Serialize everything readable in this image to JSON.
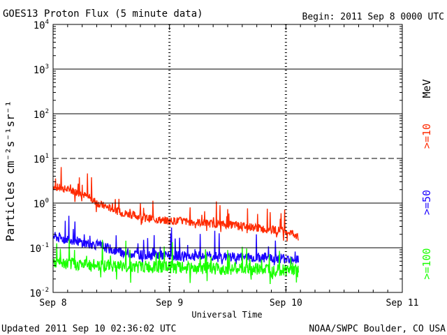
{
  "chart_data": {
    "type": "line",
    "title": "GOES13 Proton Flux (5 minute data)",
    "begin": "Begin: 2011 Sep 8 0000 UTC",
    "xlabel": "Universal Time",
    "ylabel": "Particles cm⁻²s⁻¹sr⁻¹",
    "updated": "Updated 2011 Sep 10 02:36:02 UTC",
    "source": "NOAA/SWPC Boulder, CO USA",
    "y_scale": "log",
    "ylim_exponents": [
      -2,
      4
    ],
    "y_ticks": [
      {
        "base": "10",
        "exp": "4"
      },
      {
        "base": "10",
        "exp": "3"
      },
      {
        "base": "10",
        "exp": "2"
      },
      {
        "base": "10",
        "exp": "1"
      },
      {
        "base": "10",
        "exp": "0"
      },
      {
        "base": "10",
        "exp": "-1"
      },
      {
        "base": "10",
        "exp": "-2"
      }
    ],
    "x_ticks": [
      "Sep 8",
      "Sep 9",
      "Sep 10",
      "Sep 11"
    ],
    "xlim_hours": [
      0,
      72
    ],
    "data_end_hours": 50.6,
    "unit_label": "MeV",
    "series": [
      {
        "name": ">=10",
        "color": "#ff2a00",
        "x_hours": [
          0,
          2,
          4,
          6,
          8,
          10,
          12,
          14,
          16,
          18,
          20,
          22,
          24,
          26,
          28,
          30,
          32,
          34,
          36,
          38,
          40,
          42,
          44,
          46,
          48,
          50,
          50.6
        ],
        "values": [
          2.4,
          2.1,
          1.9,
          1.6,
          1.2,
          0.9,
          0.75,
          0.62,
          0.55,
          0.5,
          0.45,
          0.42,
          0.4,
          0.4,
          0.38,
          0.37,
          0.35,
          0.34,
          0.33,
          0.32,
          0.3,
          0.28,
          0.26,
          0.25,
          0.24,
          0.2,
          0.15
        ]
      },
      {
        "name": ">=50",
        "color": "#1a00ff",
        "x_hours": [
          0,
          2,
          4,
          6,
          8,
          10,
          12,
          14,
          16,
          18,
          20,
          22,
          24,
          26,
          28,
          30,
          32,
          34,
          36,
          38,
          40,
          42,
          44,
          46,
          48,
          50,
          50.6
        ],
        "values": [
          0.18,
          0.16,
          0.15,
          0.13,
          0.12,
          0.11,
          0.09,
          0.08,
          0.075,
          0.07,
          0.07,
          0.068,
          0.066,
          0.066,
          0.065,
          0.065,
          0.064,
          0.063,
          0.062,
          0.062,
          0.061,
          0.06,
          0.06,
          0.058,
          0.058,
          0.057,
          0.055
        ]
      },
      {
        "name": ">=100",
        "color": "#1aff00",
        "x_hours": [
          0,
          2,
          4,
          6,
          8,
          10,
          12,
          14,
          16,
          18,
          20,
          22,
          24,
          26,
          28,
          30,
          32,
          34,
          36,
          38,
          40,
          42,
          44,
          46,
          48,
          50,
          50.6
        ],
        "values": [
          0.045,
          0.044,
          0.043,
          0.042,
          0.041,
          0.04,
          0.04,
          0.039,
          0.038,
          0.038,
          0.037,
          0.037,
          0.036,
          0.036,
          0.035,
          0.035,
          0.035,
          0.034,
          0.034,
          0.034,
          0.033,
          0.033,
          0.033,
          0.032,
          0.032,
          0.031,
          0.03
        ]
      }
    ]
  }
}
